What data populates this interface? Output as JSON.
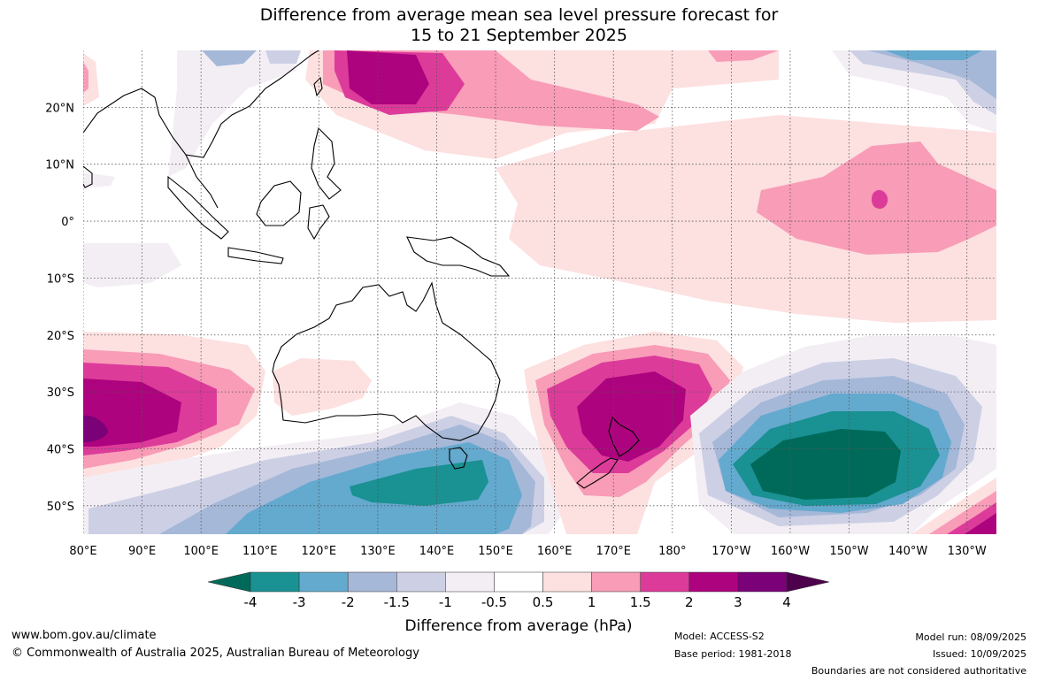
{
  "title": {
    "line1": "Difference from average mean sea level pressure forecast for",
    "line2": "15 to 21 September 2025"
  },
  "map": {
    "lon_labels": [
      "80°E",
      "90°E",
      "100°E",
      "110°E",
      "120°E",
      "130°E",
      "140°E",
      "150°E",
      "160°E",
      "170°E",
      "180°",
      "170°W",
      "160°W",
      "150°W",
      "140°W",
      "130°W"
    ],
    "lat_labels": [
      "20°N",
      "10°N",
      "0°",
      "10°S",
      "20°S",
      "30°S",
      "40°S",
      "50°S"
    ],
    "lon_range": [
      80,
      235
    ],
    "lat_range": [
      -55,
      30
    ],
    "grid": "dotted",
    "features": [
      {
        "name": "pos-anomaly-north-pacific",
        "lon": 135,
        "lat": 25,
        "max": 3
      },
      {
        "name": "pos-anomaly-indian-ocean",
        "lon": 82,
        "lat": -36,
        "max": 4
      },
      {
        "name": "pos-anomaly-new-zealand",
        "lon": 172,
        "lat": -36,
        "max": 3
      },
      {
        "name": "neg-anomaly-south-pacific",
        "lon": 205,
        "lat": -45,
        "min": -4
      },
      {
        "name": "neg-anomaly-south-australia",
        "lon": 140,
        "lat": -46,
        "min": -3
      },
      {
        "name": "pos-anomaly-central-pacific",
        "lon": 200,
        "lat": 1,
        "max": 2
      }
    ]
  },
  "colorbar": {
    "ticks": [
      "-4",
      "-3",
      "-2",
      "-1.5",
      "-1",
      "-0.5",
      "0.5",
      "1",
      "1.5",
      "2",
      "3",
      "4"
    ],
    "colors": [
      "#006a5a",
      "#1a9192",
      "#64a9ce",
      "#a5b8d8",
      "#cdd0e5",
      "#f3eef4",
      "#ffffff",
      "#fde0e0",
      "#f89cb7",
      "#dd3b9a",
      "#ad037e",
      "#7a0177",
      "#4d004b"
    ],
    "label": "Difference from average (hPa)"
  },
  "footer": {
    "url": "www.bom.gov.au/climate",
    "copyright": "© Commonwealth of Australia 2025, Australian Bureau of Meteorology",
    "model": "Model: ACCESS-S2",
    "base_period": "Base period: 1981-2018",
    "model_run": "Model run: 08/09/2025",
    "issued": "Issued: 10/09/2025",
    "disclaimer": "Boundaries are not considered authoritative"
  }
}
